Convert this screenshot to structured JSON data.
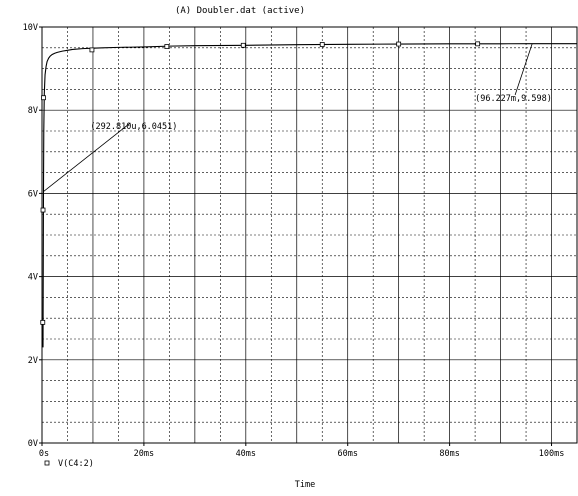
{
  "window_title": "(A) Doubler.dat (active)",
  "chart_data": {
    "type": "line",
    "title": "(A) Doubler.dat (active)",
    "xlabel": "Time",
    "ylabel": "",
    "x_unit": "ms",
    "xlim": [
      0,
      105
    ],
    "ylim": [
      0,
      10
    ],
    "grid": true,
    "x_ticks": [
      {
        "value": 0,
        "label": "0s"
      },
      {
        "value": 20,
        "label": "20ms"
      },
      {
        "value": 40,
        "label": "40ms"
      },
      {
        "value": 60,
        "label": "60ms"
      },
      {
        "value": 80,
        "label": "80ms"
      },
      {
        "value": 100,
        "label": "100ms"
      }
    ],
    "y_ticks": [
      {
        "value": 0,
        "label": "0V"
      },
      {
        "value": 2,
        "label": "2V"
      },
      {
        "value": 4,
        "label": "4V"
      },
      {
        "value": 6,
        "label": "6V"
      },
      {
        "value": 8,
        "label": "8V"
      },
      {
        "value": 10,
        "label": "10V"
      }
    ],
    "legend": {
      "position": "bottom-left",
      "entries": [
        "V(C4:2)"
      ]
    },
    "series": [
      {
        "name": "V(C4:2)",
        "color": "#000000",
        "marker": "square",
        "x": [
          0.2,
          0.25,
          0.29,
          0.35,
          0.45,
          0.6,
          0.8,
          1.0,
          1.3,
          1.6,
          2.0,
          2.5,
          3.0,
          4.0,
          5.0,
          6.0,
          8.0,
          10.0,
          12.0,
          15.0,
          20.0,
          25.0,
          30.0,
          40.0,
          50.0,
          60.0,
          70.0,
          80.0,
          90.0,
          96.2,
          100.0,
          105.0
        ],
        "y": [
          2.3,
          4.5,
          6.05,
          7.5,
          8.4,
          8.85,
          9.05,
          9.17,
          9.25,
          9.3,
          9.34,
          9.37,
          9.39,
          9.42,
          9.44,
          9.46,
          9.48,
          9.49,
          9.5,
          9.51,
          9.52,
          9.54,
          9.55,
          9.56,
          9.575,
          9.585,
          9.59,
          9.595,
          9.597,
          9.598,
          9.599,
          9.6
        ],
        "marker_points": [
          {
            "x": 0.15,
            "y": 2.9
          },
          {
            "x": 0.2,
            "y": 5.6
          },
          {
            "x": 0.3,
            "y": 8.3
          },
          {
            "x": 9.8,
            "y": 9.45
          },
          {
            "x": 24.5,
            "y": 9.53
          },
          {
            "x": 39.5,
            "y": 9.56
          },
          {
            "x": 55.0,
            "y": 9.58
          },
          {
            "x": 70.0,
            "y": 9.59
          },
          {
            "x": 85.5,
            "y": 9.595
          }
        ]
      }
    ],
    "annotations": [
      {
        "text": "(292.810u,6.0451)",
        "point_x": 0.29,
        "point_y": 6.0451,
        "label_x": 9.5,
        "label_y": 7.55
      },
      {
        "text": "(96.227m,9.598)",
        "point_x": 96.2,
        "point_y": 9.598,
        "label_x": 85.0,
        "label_y": 8.22
      }
    ]
  }
}
